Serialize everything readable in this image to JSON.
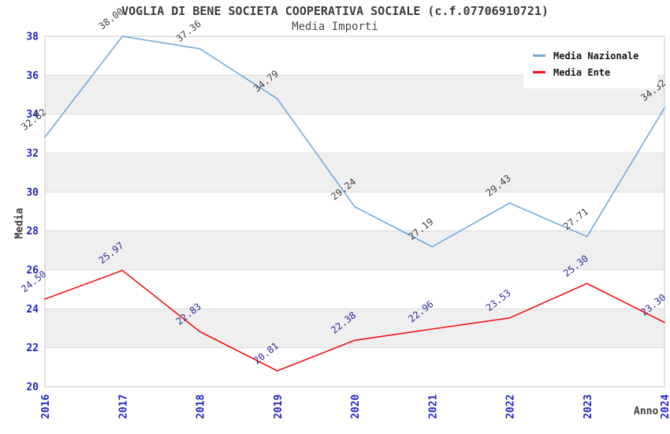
{
  "title": "VOGLIA DI BENE SOCIETA COOPERATIVA SOCIALE (c.f.07706910721)",
  "subtitle": "Media Importi",
  "axes": {
    "y_label": "Media",
    "x_label": "Anno"
  },
  "colors": {
    "tick_label": "#2222cc",
    "band_gray": "#efefef",
    "gridline": "#dcdcdc",
    "plot_border": "#c8c8c8",
    "title_text": "#3c3c3c",
    "legend_background": "#ffffff"
  },
  "legend": {
    "position": "top-right",
    "items": [
      {
        "label": "Media Nazionale",
        "color": "#74a9e0"
      },
      {
        "label": "Media Ente",
        "color": "#ee1515"
      }
    ]
  },
  "chart_data": {
    "type": "line",
    "title": "VOGLIA DI BENE SOCIETA COOPERATIVA SOCIALE (c.f.07706910721)",
    "subtitle": "Media Importi",
    "xlabel": "Anno",
    "ylabel": "Media",
    "categories": [
      "2016",
      "2017",
      "2018",
      "2019",
      "2020",
      "2021",
      "2022",
      "2023",
      "2024"
    ],
    "series": [
      {
        "name": "Media Nazionale",
        "color": "#74a9e0",
        "label_color": "#404040",
        "values": [
          32.82,
          38.0,
          37.36,
          34.79,
          29.24,
          27.19,
          29.43,
          27.71,
          34.32
        ],
        "labels": [
          "32.82",
          "38.00",
          "37.36",
          "34.79",
          "29.24",
          "27.19",
          "29.43",
          "27.71",
          "34.32"
        ]
      },
      {
        "name": "Media Ente",
        "color": "#ee1515",
        "label_color": "#2e2e9e",
        "values": [
          24.5,
          25.97,
          22.83,
          20.81,
          22.38,
          22.96,
          23.53,
          25.3,
          23.3
        ],
        "labels": [
          "24.50",
          "25.97",
          "22.83",
          "20.81",
          "22.38",
          "22.96",
          "23.53",
          "25.30",
          "23.30"
        ]
      }
    ],
    "ylim": [
      20,
      38
    ],
    "ytick_step": 2,
    "yticks": [
      "20",
      "22",
      "24",
      "26",
      "28",
      "30",
      "32",
      "34",
      "36",
      "38"
    ],
    "grid": true,
    "band_fill": "alternating-horizontal",
    "legend_position": "top-right"
  }
}
